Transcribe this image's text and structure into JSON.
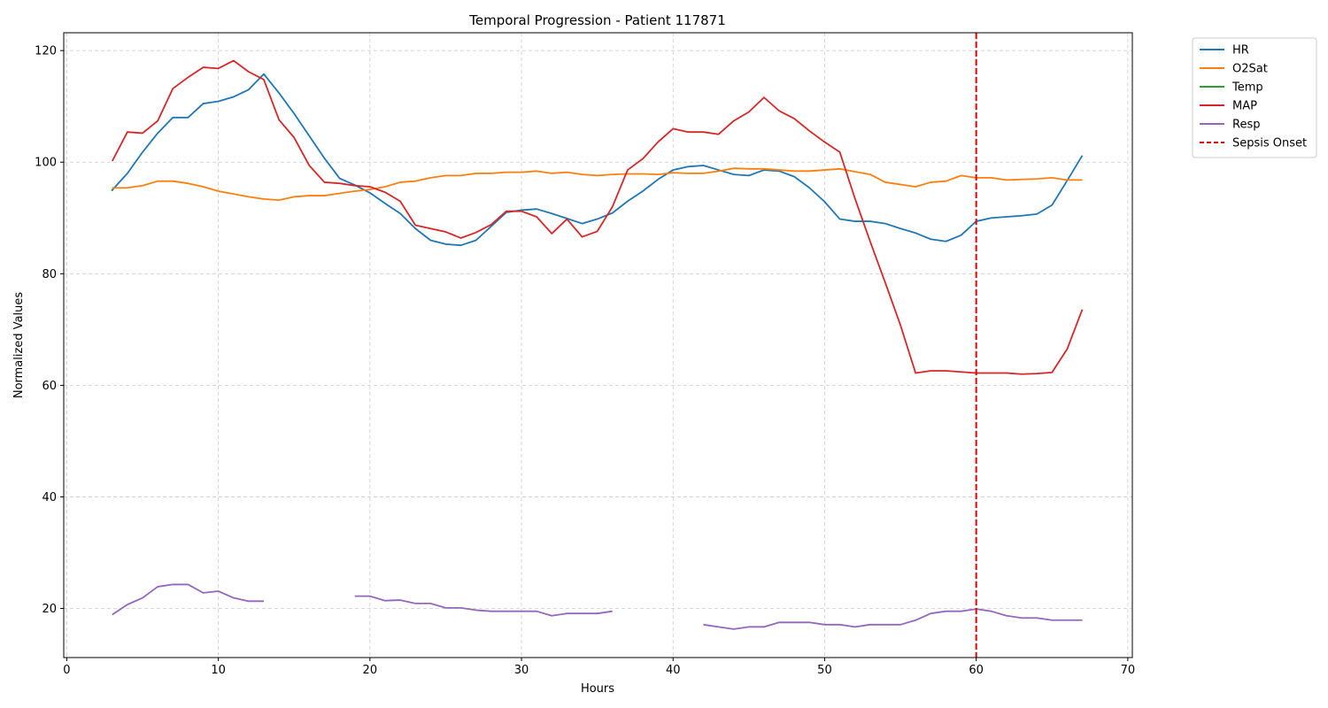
{
  "chart_data": {
    "type": "line",
    "title": "Temporal Progression - Patient 117871",
    "xlabel": "Hours",
    "ylabel": "Normalized Values",
    "xlim": [
      -0.2,
      70.3
    ],
    "ylim": [
      11.2,
      123.2
    ],
    "xticks": [
      0,
      10,
      20,
      30,
      40,
      50,
      60,
      70
    ],
    "yticks": [
      20,
      40,
      60,
      80,
      100,
      120
    ],
    "grid": true,
    "legend_position": "outside-top-right",
    "series": [
      {
        "name": "HR",
        "color": "#1f77b4",
        "x": [
          3,
          4,
          5,
          6,
          7,
          8,
          9,
          10,
          11,
          12,
          13,
          14,
          15,
          16,
          17,
          18,
          19,
          20,
          21,
          22,
          23,
          24,
          25,
          26,
          27,
          28,
          29,
          30,
          31,
          32,
          33,
          34,
          35,
          36,
          37,
          38,
          39,
          40,
          41,
          42,
          43,
          44,
          45,
          46,
          47,
          48,
          49,
          50,
          51,
          52,
          53,
          54,
          55,
          56,
          57,
          58,
          59,
          60,
          61,
          62,
          63,
          64,
          65,
          66,
          67
        ],
        "y": [
          95,
          98,
          101.8,
          105.2,
          108,
          108,
          110.5,
          110.9,
          111.7,
          113,
          115.8,
          112.4,
          108.7,
          104.7,
          100.7,
          97.1,
          95.9,
          94.5,
          92.6,
          90.8,
          88.1,
          86,
          85.3,
          85.1,
          86,
          88.5,
          91,
          91.4,
          91.6,
          90.8,
          89.9,
          89,
          89.8,
          90.9,
          93,
          94.8,
          96.9,
          98.6,
          99.2,
          99.4,
          98.6,
          97.8,
          97.6,
          98.6,
          98.4,
          97.4,
          95.4,
          92.9,
          89.8,
          89.4,
          89.4,
          89,
          88.1,
          87.3,
          86.2,
          85.8,
          86.9,
          89.4,
          90,
          90.2,
          90.4,
          90.7,
          92.3,
          96.7,
          101.2
        ]
      },
      {
        "name": "O2Sat",
        "color": "#ff7f0e",
        "x": [
          3,
          4,
          5,
          6,
          7,
          8,
          9,
          10,
          11,
          12,
          13,
          14,
          15,
          16,
          17,
          18,
          19,
          20,
          21,
          22,
          23,
          24,
          25,
          26,
          27,
          28,
          29,
          30,
          31,
          32,
          33,
          34,
          35,
          36,
          37,
          38,
          39,
          40,
          41,
          42,
          43,
          44,
          45,
          46,
          47,
          48,
          49,
          50,
          51,
          52,
          53,
          54,
          55,
          56,
          57,
          58,
          59,
          60,
          61,
          62,
          63,
          64,
          65,
          66,
          67
        ],
        "y": [
          95.4,
          95.4,
          95.8,
          96.6,
          96.6,
          96.2,
          95.6,
          94.8,
          94.3,
          93.8,
          93.4,
          93.2,
          93.8,
          94,
          94,
          94.4,
          94.8,
          95.1,
          95.6,
          96.4,
          96.6,
          97.2,
          97.6,
          97.6,
          98,
          98,
          98.2,
          98.2,
          98.4,
          98,
          98.2,
          97.8,
          97.6,
          97.8,
          97.9,
          97.9,
          97.8,
          98.1,
          98,
          98,
          98.4,
          98.9,
          98.8,
          98.8,
          98.6,
          98.4,
          98.4,
          98.6,
          98.8,
          98.3,
          97.8,
          96.4,
          96,
          95.6,
          96.4,
          96.6,
          97.6,
          97.2,
          97.2,
          96.8,
          96.9,
          97,
          97.2,
          96.8,
          96.8
        ]
      },
      {
        "name": "Temp",
        "color": "#2ca02c",
        "x": [
          3
        ],
        "y": [
          95
        ]
      },
      {
        "name": "MAP",
        "color": "#d62728",
        "x": [
          3,
          4,
          5,
          6,
          7,
          8,
          9,
          10,
          11,
          12,
          13,
          14,
          15,
          16,
          17,
          18,
          19,
          20,
          21,
          22,
          23,
          24,
          25,
          26,
          27,
          28,
          29,
          30,
          31,
          32,
          33,
          34,
          35,
          36,
          37,
          38,
          39,
          40,
          41,
          42,
          43,
          44,
          45,
          46,
          47,
          48,
          49,
          50,
          51,
          52,
          53,
          54,
          55,
          56,
          57,
          58,
          59,
          60,
          61,
          62,
          63,
          64,
          65,
          66,
          67
        ],
        "y": [
          100.2,
          105.4,
          105.2,
          107.4,
          113.2,
          115.2,
          117,
          116.8,
          118.2,
          116.2,
          114.8,
          107.6,
          104.4,
          99.4,
          96.4,
          96.2,
          95.8,
          95.6,
          94.6,
          93,
          88.7,
          88.1,
          87.5,
          86.4,
          87.4,
          88.8,
          91.2,
          91.2,
          90.2,
          87.2,
          89.8,
          86.6,
          87.6,
          92,
          98.6,
          100.6,
          103.6,
          106,
          105.4,
          105.4,
          105,
          107.4,
          109,
          111.6,
          109.2,
          107.8,
          105.6,
          103.6,
          101.8,
          93.5,
          85.8,
          78.4,
          70.8,
          62.2,
          62.6,
          62.6,
          62.4,
          62.2,
          62.2,
          62.2,
          62,
          62.1,
          62.3,
          66.5,
          73.6
        ]
      },
      {
        "name": "Resp",
        "color": "#9467bd",
        "x": [
          3,
          4,
          5,
          6,
          7,
          8,
          9,
          10,
          11,
          12,
          13,
          14,
          15,
          16,
          17,
          18,
          19,
          20,
          21,
          22,
          23,
          24,
          25,
          26,
          27,
          28,
          29,
          30,
          31,
          32,
          33,
          34,
          35,
          36,
          37,
          38,
          39,
          40,
          41,
          42,
          43,
          44,
          45,
          46,
          47,
          48,
          49,
          50,
          51,
          52,
          53,
          54,
          55,
          56,
          57,
          58,
          59,
          60,
          61,
          62,
          63,
          64,
          65,
          66,
          67
        ],
        "y": [
          18.9,
          20.7,
          21.9,
          23.9,
          24.3,
          24.3,
          22.8,
          23.1,
          21.9,
          21.3,
          21.3,
          null,
          null,
          null,
          null,
          null,
          22.2,
          22.2,
          21.4,
          21.5,
          20.9,
          20.9,
          20.1,
          20.1,
          19.7,
          19.5,
          19.5,
          19.5,
          19.5,
          18.7,
          19.1,
          19.1,
          19.1,
          19.5,
          null,
          null,
          null,
          null,
          null,
          17.1,
          16.7,
          16.3,
          16.7,
          16.7,
          17.5,
          17.5,
          17.5,
          17.1,
          17.1,
          16.7,
          17.1,
          17.1,
          17.1,
          17.9,
          19.1,
          19.5,
          19.5,
          19.9,
          19.5,
          18.7,
          18.3,
          18.3,
          17.9,
          17.9,
          17.9
        ]
      }
    ],
    "annotations": [
      {
        "type": "vline",
        "x": 60,
        "name": "Sepsis Onset",
        "color": "#e00000",
        "style": "dashed"
      }
    ]
  }
}
